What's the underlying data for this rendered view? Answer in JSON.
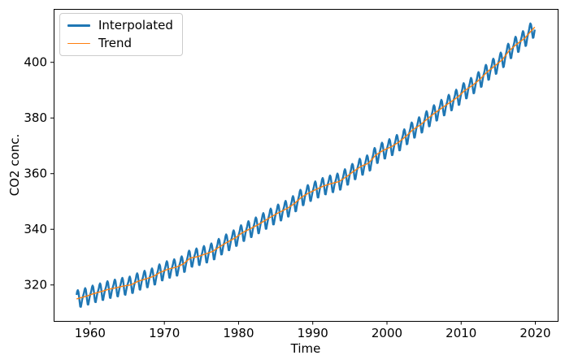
{
  "figure": {
    "background": "#ffffff"
  },
  "chart_data": {
    "type": "line",
    "title": "",
    "xlabel": "Time",
    "ylabel": "CO2 conc.",
    "x_ticks": [
      1960,
      1970,
      1980,
      1990,
      2000,
      2010,
      2020
    ],
    "y_ticks": [
      320,
      340,
      360,
      380,
      400
    ],
    "xlim": [
      1955.08,
      2023.01
    ],
    "ylim": [
      307.07,
      419.19
    ],
    "grid": false,
    "legend": {
      "position": "upper left"
    },
    "series": [
      {
        "name": "Interpolated",
        "color": "#1f77b4",
        "linewidth": 2.4,
        "kind": "monthly_trend_plus_seasonal"
      },
      {
        "name": "Trend",
        "color": "#ff7f0e",
        "linewidth": 1.4,
        "kind": "monthly_trend_only"
      }
    ],
    "x_start": 1958.167,
    "x_end": 2019.917,
    "annual_trend": {
      "year_centers_start": 1958.5,
      "co2_ppm": [
        315.23,
        315.97,
        316.91,
        317.64,
        318.45,
        318.99,
        319.62,
        320.04,
        321.37,
        322.18,
        323.04,
        324.62,
        325.68,
        326.32,
        327.45,
        329.68,
        330.18,
        331.11,
        332.04,
        333.83,
        335.4,
        336.84,
        338.75,
        340.11,
        341.45,
        343.05,
        344.65,
        346.12,
        347.42,
        349.19,
        351.57,
        353.12,
        354.39,
        355.61,
        356.45,
        357.1,
        358.83,
        360.82,
        362.61,
        363.73,
        366.7,
        368.38,
        369.55,
        371.14,
        373.28,
        375.8,
        377.52,
        379.8,
        381.9,
        383.79,
        385.6,
        387.43,
        389.9,
        391.65,
        393.85,
        396.52,
        398.65,
        400.83,
        404.24,
        406.55,
        408.52,
        411.44
      ]
    },
    "seasonal_cycle_ppm": [
      0.0,
      0.66,
      1.43,
      2.56,
      3.03,
      2.39,
      0.72,
      -1.42,
      -3.14,
      -3.25,
      -2.07,
      -0.91
    ]
  }
}
